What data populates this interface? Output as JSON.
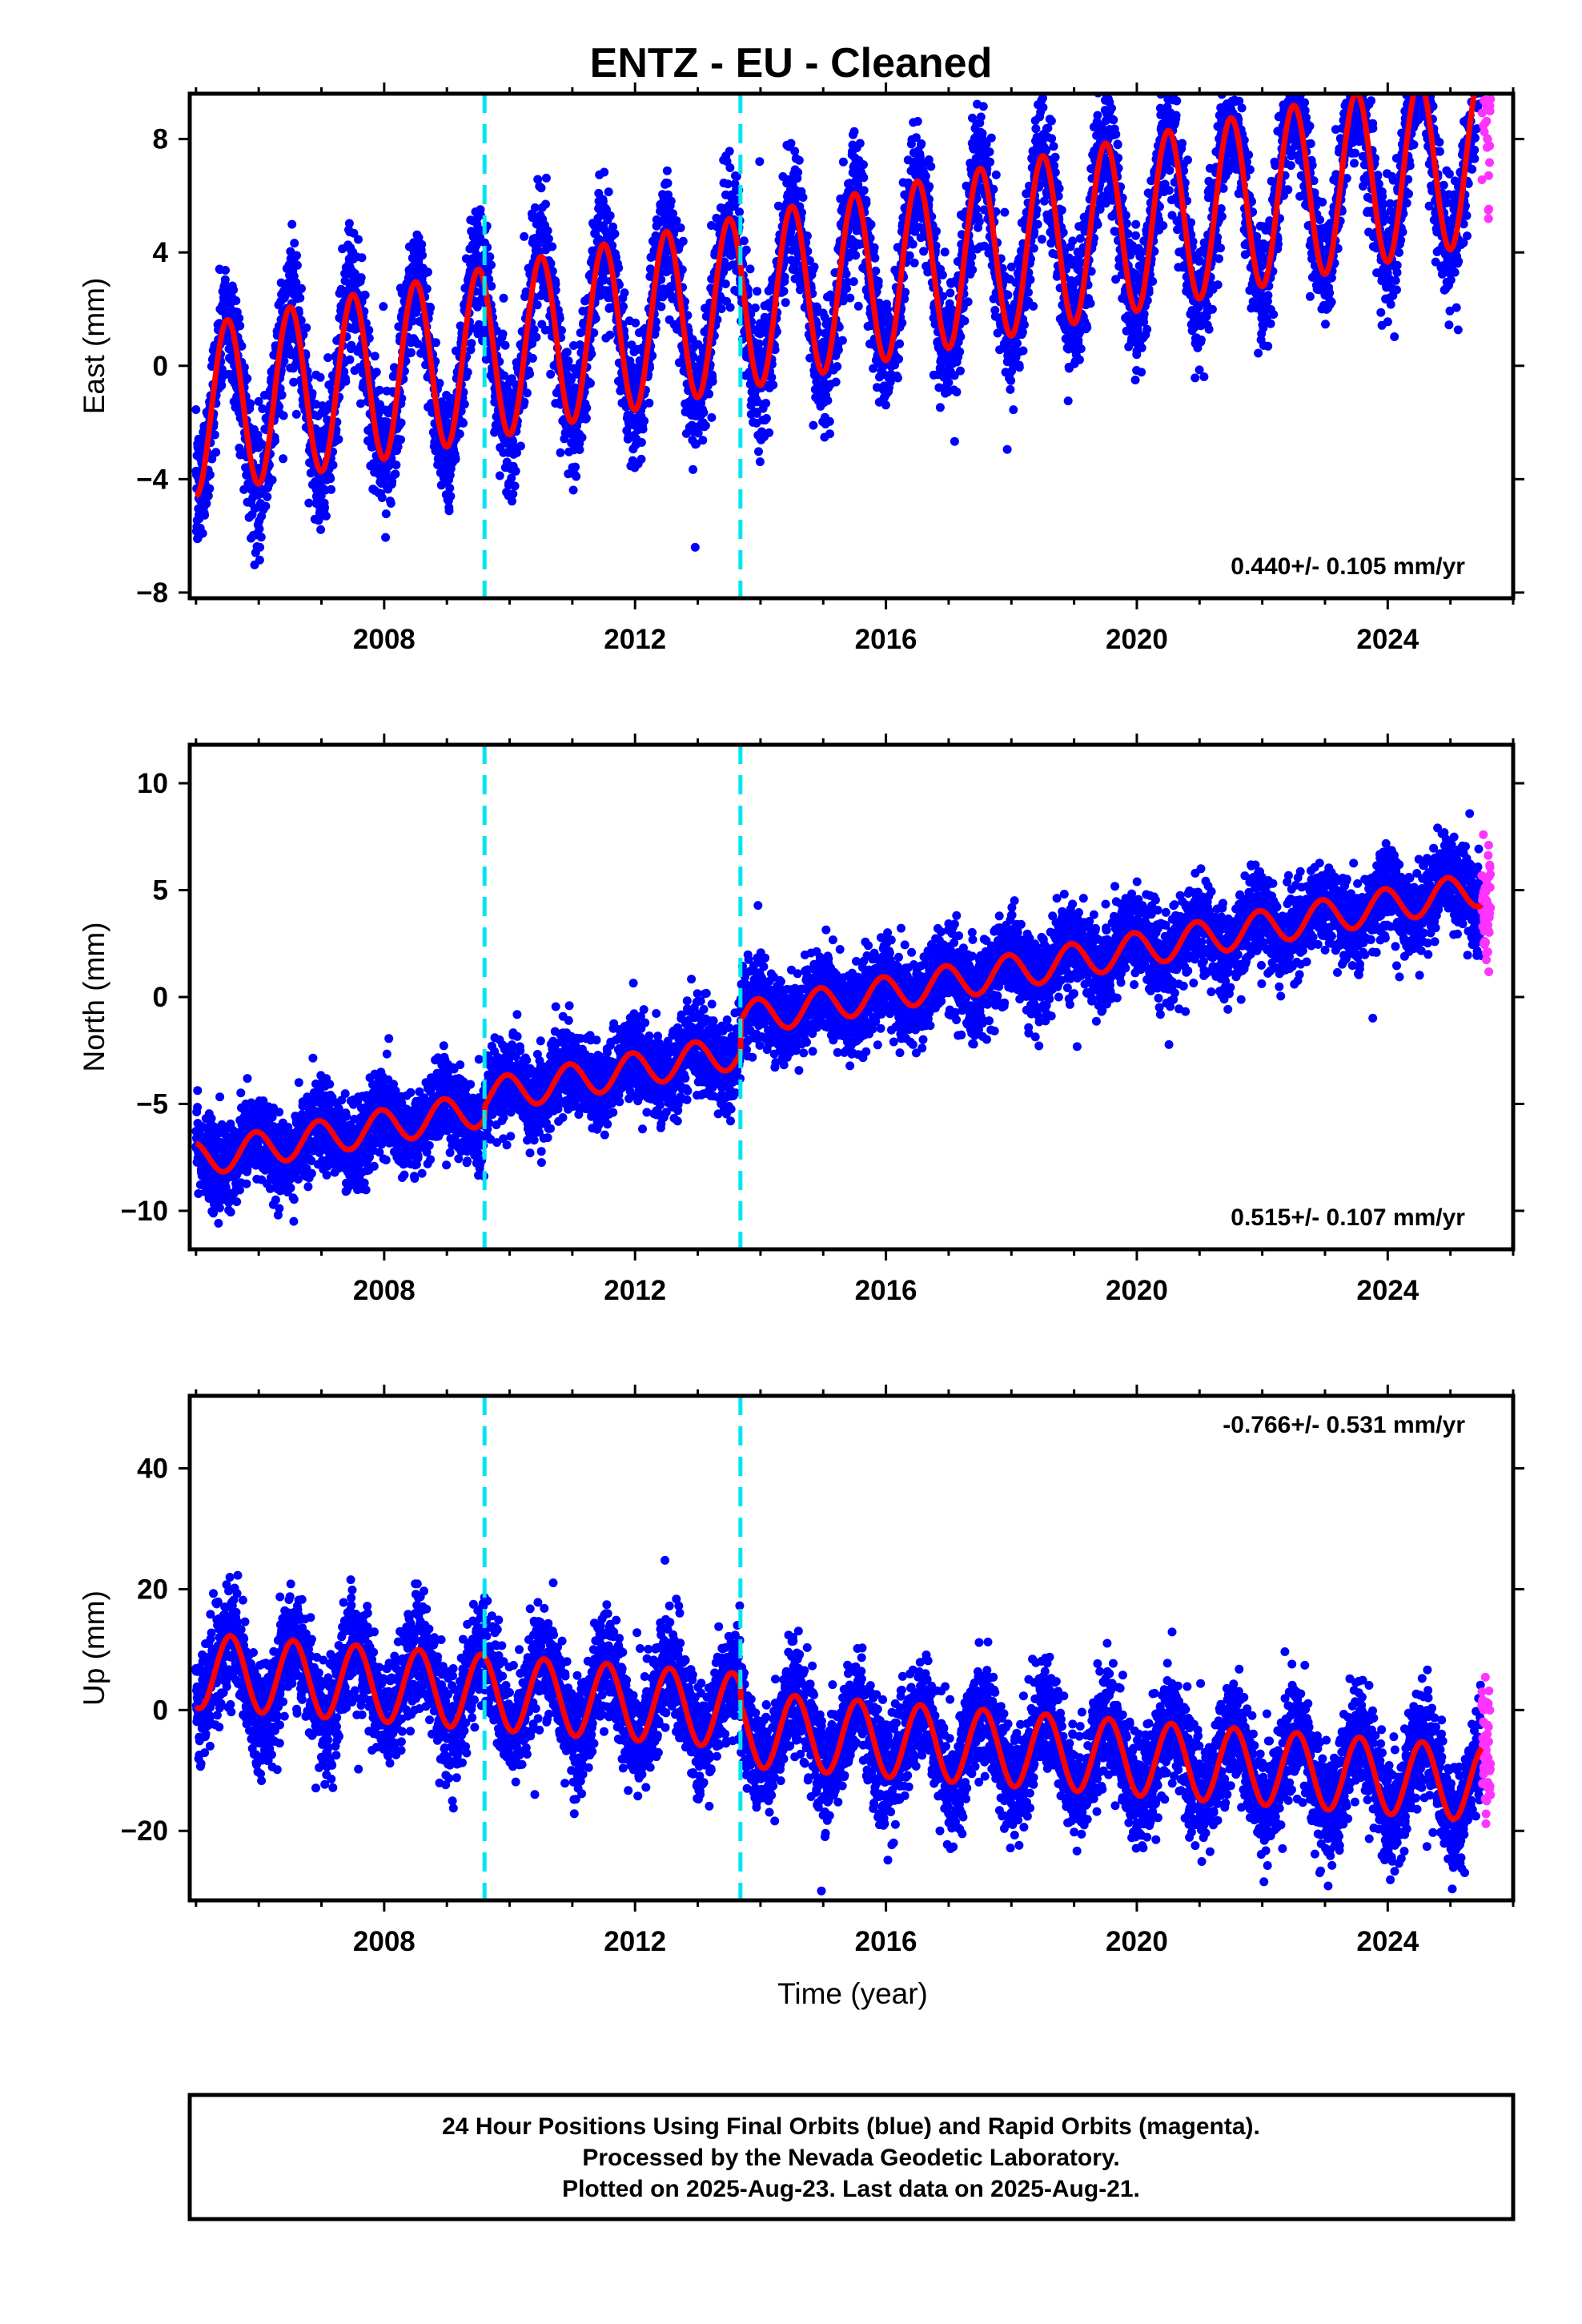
{
  "chart_title": "ENTZ  - EU - Cleaned",
  "xlabel": "Time (year)",
  "footer": {
    "line1": "24 Hour Positions Using Final Orbits (blue) and Rapid Orbits (magenta).",
    "line2": "Processed by the Nevada Geodetic Laboratory.",
    "line3": "Plotted on 2025-Aug-23. Last data on 2025-Aug-21."
  },
  "colors": {
    "final_orbits": "#0000ff",
    "rapid_orbits": "#ff33ff",
    "model_fit": "#ff0000",
    "offset_marker": "#00e5ee"
  },
  "chart_data": [
    {
      "type": "scatter",
      "component": "East",
      "ylabel": "East (mm)",
      "xlim": [
        2004.9,
        2026.0
      ],
      "ylim": [
        -8.2,
        9.6
      ],
      "yticks": [
        -8,
        -4,
        0,
        4,
        8
      ],
      "xticks": [
        2008,
        2012,
        2016,
        2020,
        2024
      ],
      "offset_epochs": [
        2009.6,
        2013.68
      ],
      "rate_label": "0.440+/- 0.105 mm/yr",
      "rate_label_position": "bottom-right",
      "model": {
        "trend_mm_per_yr": 0.44,
        "intercept_mm": -1.6,
        "offsets_mm": [
          0,
          0
        ],
        "annual_amplitude_start_mm": 3.0,
        "annual_amplitude_end_mm": 3.1,
        "annual_phase_peak_year_fraction": 0.5
      },
      "series": [
        {
          "source": "final_orbits",
          "x_range": [
            2005.0,
            2025.5
          ],
          "scatter_sd_mm": 1.1
        },
        {
          "source": "rapid_orbits",
          "x_range": [
            2025.5,
            2025.64
          ],
          "scatter_sd_mm": 2.0
        }
      ]
    },
    {
      "type": "scatter",
      "component": "North",
      "ylabel": "North (mm)",
      "xlim": [
        2004.9,
        2026.0
      ],
      "ylim": [
        -11.8,
        11.8
      ],
      "yticks": [
        -10,
        -5,
        0,
        5,
        10
      ],
      "xticks": [
        2008,
        2012,
        2016,
        2020,
        2024
      ],
      "offset_epochs": [
        2009.6,
        2013.68
      ],
      "rate_label": "0.515+/- 0.107 mm/yr",
      "rate_label_position": "bottom-right",
      "model": {
        "trend_mm_per_yr": 0.515,
        "intercept_mm": -7.6,
        "offsets_mm": [
          0.6,
          1.5
        ],
        "annual_amplitude_start_mm": 0.8,
        "annual_amplitude_end_mm": 0.8,
        "annual_phase_peak_year_fraction": 0.95
      },
      "series": [
        {
          "source": "final_orbits",
          "x_range": [
            2005.0,
            2025.5
          ],
          "scatter_sd_mm": 1.0
        },
        {
          "source": "rapid_orbits",
          "x_range": [
            2025.5,
            2025.64
          ],
          "scatter_sd_mm": 1.5
        }
      ]
    },
    {
      "type": "scatter",
      "component": "Up",
      "ylabel": "Up (mm)",
      "xlim": [
        2004.9,
        2026.0
      ],
      "ylim": [
        -31.5,
        52.0
      ],
      "yticks": [
        -20,
        0,
        20,
        40
      ],
      "xticks": [
        2008,
        2012,
        2016,
        2020,
        2024
      ],
      "offset_epochs": [
        2009.6,
        2013.68
      ],
      "rate_label": "-0.766+/- 0.531 mm/yr",
      "rate_label_position": "top-right",
      "model": {
        "trend_mm_per_yr": -0.766,
        "intercept_mm": 6.5,
        "offsets_mm": [
          0,
          -3
        ],
        "annual_amplitude_start_mm": 6.2,
        "annual_amplitude_end_mm": 6.2,
        "annual_phase_peak_year_fraction": 0.55
      },
      "series": [
        {
          "source": "final_orbits",
          "x_range": [
            2005.0,
            2025.5
          ],
          "scatter_sd_mm": 4.5
        },
        {
          "source": "rapid_orbits",
          "x_range": [
            2025.5,
            2025.64
          ],
          "scatter_sd_mm": 6.0
        }
      ]
    }
  ]
}
